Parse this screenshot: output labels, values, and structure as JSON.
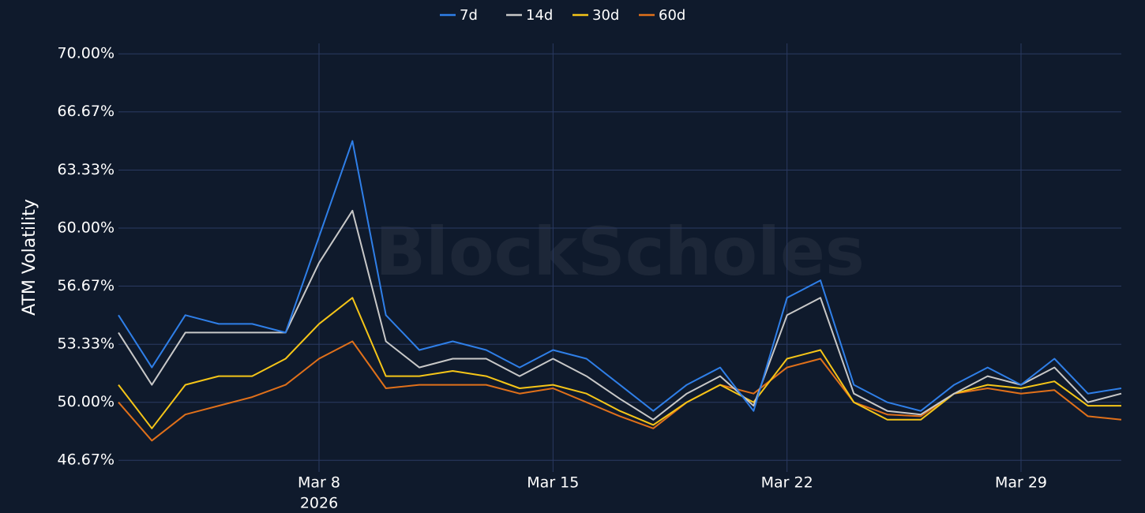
{
  "chart_data": {
    "type": "line",
    "y_label": "ATM Volatility",
    "watermark": "BlockScholes",
    "year_label": "2026",
    "x": [
      "2026-03-02",
      "2026-03-03",
      "2026-03-04",
      "2026-03-05",
      "2026-03-06",
      "2026-03-07",
      "2026-03-08",
      "2026-03-09",
      "2026-03-10",
      "2026-03-11",
      "2026-03-12",
      "2026-03-13",
      "2026-03-14",
      "2026-03-15",
      "2026-03-16",
      "2026-03-17",
      "2026-03-18",
      "2026-03-19",
      "2026-03-20",
      "2026-03-21",
      "2026-03-22",
      "2026-03-23",
      "2026-03-24",
      "2026-03-25",
      "2026-03-26",
      "2026-03-27",
      "2026-03-28",
      "2026-03-29",
      "2026-03-30",
      "2026-03-31",
      "2026-04-01"
    ],
    "series": [
      {
        "name": "7d",
        "color": "#2f7fe8",
        "values": [
          55,
          52,
          55,
          54.5,
          54.5,
          54,
          59.5,
          65,
          55,
          53,
          53.5,
          53,
          52,
          53,
          52.5,
          51,
          49.5,
          51,
          52,
          49.5,
          56,
          57,
          51,
          50,
          49.5,
          51,
          52,
          51,
          52.5,
          50.5,
          50.8
        ]
      },
      {
        "name": "14d",
        "color": "#c8c8c8",
        "values": [
          54,
          51,
          54,
          54,
          54,
          54,
          58,
          61,
          53.5,
          52,
          52.5,
          52.5,
          51.5,
          52.5,
          51.5,
          50.2,
          49,
          50.5,
          51.5,
          49.8,
          55,
          56,
          50.5,
          49.5,
          49.3,
          50.5,
          51.5,
          51,
          52,
          50,
          50.5
        ]
      },
      {
        "name": "30d",
        "color": "#f5c518",
        "values": [
          51,
          48.5,
          51,
          51.5,
          51.5,
          52.5,
          54.5,
          56,
          51.5,
          51.5,
          51.8,
          51.5,
          50.8,
          51,
          50.5,
          49.5,
          48.7,
          50,
          51,
          50,
          52.5,
          53,
          50,
          49,
          49,
          50.5,
          51,
          50.8,
          51.2,
          49.8,
          49.8
        ]
      },
      {
        "name": "60d",
        "color": "#e0701a",
        "values": [
          50,
          47.8,
          49.3,
          49.8,
          50.3,
          51,
          52.5,
          53.5,
          50.8,
          51,
          51,
          51,
          50.5,
          50.8,
          50,
          49.2,
          48.5,
          50,
          51,
          50.5,
          52,
          52.5,
          50,
          49.3,
          49.2,
          50.5,
          50.8,
          50.5,
          50.7,
          49.2,
          49
        ]
      }
    ],
    "xlim": [
      "2026-03-02",
      "2026-04-01"
    ],
    "xticks": [
      {
        "value": "2026-03-08",
        "label": "Mar 8"
      },
      {
        "value": "2026-03-15",
        "label": "Mar 15"
      },
      {
        "value": "2026-03-22",
        "label": "Mar 22"
      },
      {
        "value": "2026-03-29",
        "label": "Mar 29"
      }
    ],
    "ylim": [
      46,
      70.6
    ],
    "yticks": [
      {
        "value": 46.67,
        "label": "46.67%"
      },
      {
        "value": 50,
        "label": "50.00%"
      },
      {
        "value": 53.33,
        "label": "53.33%"
      },
      {
        "value": 56.67,
        "label": "56.67%"
      },
      {
        "value": 60,
        "label": "60.00%"
      },
      {
        "value": 63.33,
        "label": "63.33%"
      },
      {
        "value": 66.67,
        "label": "66.67%"
      },
      {
        "value": 70,
        "label": "70.00%"
      }
    ],
    "grid": true,
    "legend": "top"
  }
}
